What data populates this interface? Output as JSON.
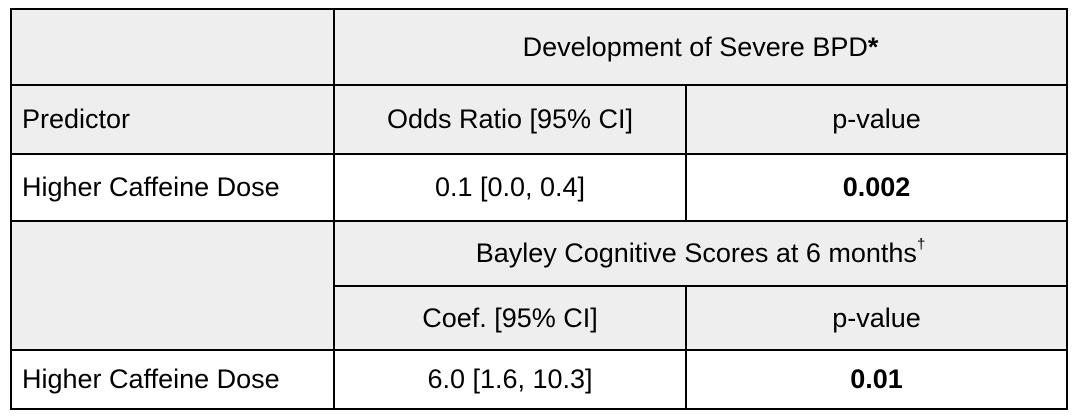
{
  "section1": {
    "title": "Development of Severe BPD",
    "title_mark": "*"
  },
  "header1": {
    "predictor": "Predictor",
    "col2": "Odds Ratio [95% CI]",
    "col3": "p-value"
  },
  "row1": {
    "predictor": "Higher Caffeine Dose",
    "estimate": "0.1 [0.0, 0.4]",
    "p_value": "0.002"
  },
  "section2": {
    "title": "Bayley Cognitive Scores at 6 months",
    "title_mark": "†"
  },
  "header2": {
    "col2": "Coef. [95% CI]",
    "col3": "p-value"
  },
  "row2": {
    "predictor": "Higher Caffeine Dose",
    "estimate": "6.0 [1.6, 10.3]",
    "p_value": "0.01"
  },
  "colors": {
    "header_fill": "#eeeeee",
    "border": "#000000"
  }
}
